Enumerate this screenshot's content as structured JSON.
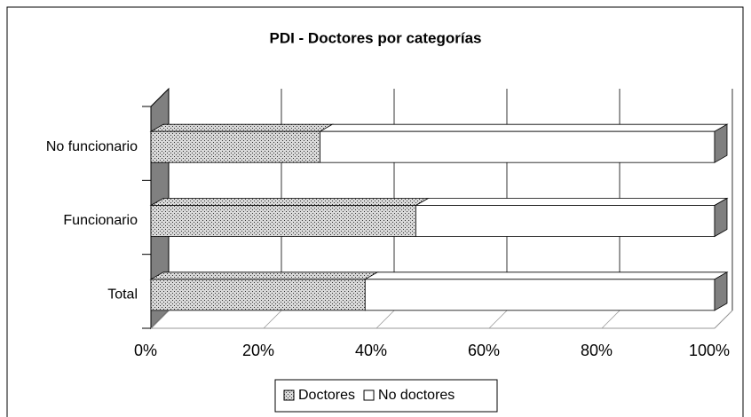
{
  "chart_data": {
    "type": "stacked-bar-horizontal-3d",
    "title": "PDI - Doctores por categorías",
    "categories": [
      "Total",
      "Funcionario",
      "No funcionario"
    ],
    "series": [
      {
        "name": "Doctores",
        "color": "#d9d9d9",
        "values": [
          38,
          47,
          30
        ]
      },
      {
        "name": "No doctores",
        "color": "#ffffff",
        "values": [
          62,
          53,
          70
        ]
      }
    ],
    "xlim": [
      0,
      100
    ],
    "xticks": [
      {
        "value": 0,
        "label": "0%"
      },
      {
        "value": 20,
        "label": "20%"
      },
      {
        "value": 40,
        "label": "40%"
      },
      {
        "value": 60,
        "label": "60%"
      },
      {
        "value": 80,
        "label": "80%"
      },
      {
        "value": 100,
        "label": "100%"
      }
    ],
    "grid": true,
    "legend": "bottom"
  }
}
